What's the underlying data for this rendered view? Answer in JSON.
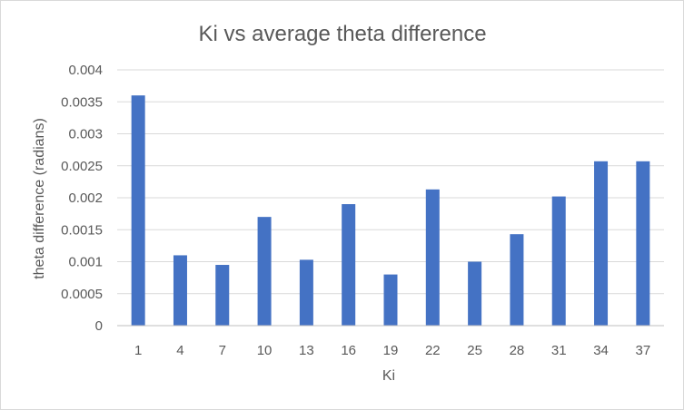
{
  "chart_data": {
    "type": "bar",
    "title": "Ki vs average theta difference",
    "xlabel": "Ki",
    "ylabel": "theta difference (radians)",
    "categories": [
      "1",
      "4",
      "7",
      "10",
      "13",
      "16",
      "19",
      "22",
      "25",
      "28",
      "31",
      "34",
      "37"
    ],
    "values": [
      0.0036,
      0.0011,
      0.00095,
      0.0017,
      0.00103,
      0.0019,
      0.0008,
      0.00213,
      0.001,
      0.00143,
      0.00202,
      0.00257,
      0.00257
    ],
    "ylim": [
      0,
      0.004
    ],
    "yticks": [
      "0",
      "0.0005",
      "0.001",
      "0.0015",
      "0.002",
      "0.0025",
      "0.003",
      "0.0035",
      "0.004"
    ],
    "grid": true,
    "legend": "none",
    "bar_color": "#4472c4"
  }
}
